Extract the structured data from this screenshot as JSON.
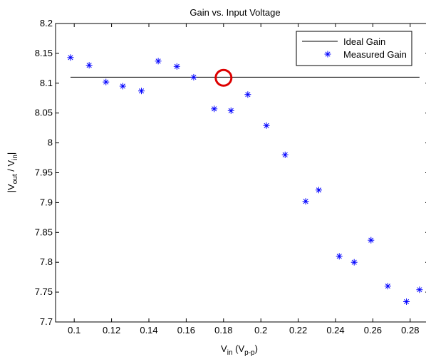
{
  "chart_data": {
    "type": "scatter",
    "title": "Gain vs. Input Voltage",
    "xlabel": {
      "main": "V",
      "sub": "in",
      "paren_open": " (V",
      "paren_sub": "p-p",
      "paren_close": ")"
    },
    "ylabel": {
      "pre": "|V",
      "sub1": "out",
      "mid": " / V",
      "sub2": "in",
      "post": "|"
    },
    "xlim": [
      0.09,
      0.29
    ],
    "ylim": [
      7.7,
      8.2
    ],
    "xticks": [
      0.1,
      0.12,
      0.14,
      0.16,
      0.18,
      0.2,
      0.22,
      0.24,
      0.26,
      0.28
    ],
    "xtick_labels": [
      "0.1",
      "0.12",
      "0.14",
      "0.16",
      "0.18",
      "0.2",
      "0.22",
      "0.24",
      "0.26",
      "0.28"
    ],
    "yticks": [
      7.7,
      7.75,
      7.8,
      7.85,
      7.9,
      7.95,
      8.0,
      8.05,
      8.1,
      8.15,
      8.2
    ],
    "ytick_labels": [
      "7.7",
      "7.75",
      "7.8",
      "7.85",
      "7.9",
      "7.95",
      "8",
      "8.05",
      "8.1",
      "8.15",
      "8.2"
    ],
    "grid": false,
    "legend_position": "top-right",
    "ideal_gain": {
      "name": "Ideal Gain",
      "x": [
        0.098,
        0.285
      ],
      "y": [
        8.11,
        8.11
      ],
      "color": "#000000"
    },
    "measured_gain": {
      "name": "Measured Gain",
      "marker": "*",
      "color": "#0000ff",
      "x": [
        0.098,
        0.108,
        0.117,
        0.126,
        0.136,
        0.145,
        0.155,
        0.164,
        0.175,
        0.184,
        0.193,
        0.203,
        0.213,
        0.224,
        0.231,
        0.242,
        0.25,
        0.259,
        0.268,
        0.278,
        0.285
      ],
      "y": [
        8.143,
        8.13,
        8.102,
        8.095,
        8.087,
        8.137,
        8.128,
        8.11,
        8.057,
        8.054,
        8.081,
        8.029,
        7.98,
        7.902,
        7.921,
        7.81,
        7.8,
        7.837,
        7.76,
        7.734,
        7.754
      ]
    },
    "highlight": {
      "x": 0.18,
      "y": 8.109,
      "color": "#dd0000"
    }
  }
}
